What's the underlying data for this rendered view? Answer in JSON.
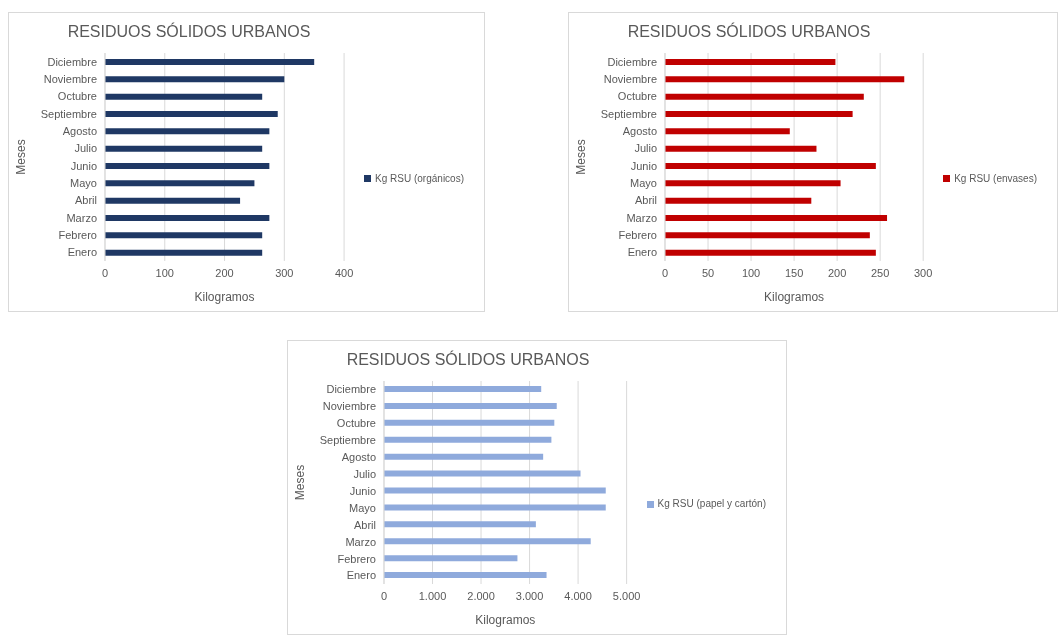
{
  "chart_data": [
    {
      "type": "bar",
      "orientation": "horizontal",
      "title": "RESIDUOS SÓLIDOS URBANOS",
      "xlabel": "Kilogramos",
      "ylabel": "Meses",
      "categories": [
        "Diciembre",
        "Noviembre",
        "Octubre",
        "Septiembre",
        "Agosto",
        "Julio",
        "Junio",
        "Mayo",
        "Abril",
        "Marzo",
        "Febrero",
        "Enero"
      ],
      "series": [
        {
          "name": "Kg RSU (orgánicos)",
          "color": "#1f3864",
          "values": [
            350,
            300,
            263,
            289,
            275,
            263,
            275,
            250,
            226,
            275,
            263,
            263
          ]
        }
      ],
      "xlim": [
        0,
        400
      ],
      "xticks": [
        0,
        100,
        200,
        300,
        400
      ],
      "grid": "x",
      "legend": "right"
    },
    {
      "type": "bar",
      "orientation": "horizontal",
      "title": "RESIDUOS SÓLIDOS URBANOS",
      "xlabel": "Kilogramos",
      "ylabel": "Meses",
      "categories": [
        "Diciembre",
        "Noviembre",
        "Octubre",
        "Septiembre",
        "Agosto",
        "Julio",
        "Junio",
        "Mayo",
        "Abril",
        "Marzo",
        "Febrero",
        "Enero"
      ],
      "series": [
        {
          "name": "Kg RSU (envases)",
          "color": "#c00000",
          "values": [
            198,
            278,
            231,
            218,
            145,
            176,
            245,
            204,
            170,
            258,
            238,
            245
          ]
        }
      ],
      "xlim": [
        0,
        300
      ],
      "xticks": [
        0,
        50,
        100,
        150,
        200,
        250,
        300
      ],
      "grid": "x",
      "legend": "right"
    },
    {
      "type": "bar",
      "orientation": "horizontal",
      "title": "RESIDUOS SÓLIDOS URBANOS",
      "xlabel": "Kilogramos",
      "ylabel": "Meses",
      "categories": [
        "Diciembre",
        "Noviembre",
        "Octubre",
        "Septiembre",
        "Agosto",
        "Julio",
        "Junio",
        "Mayo",
        "Abril",
        "Marzo",
        "Febrero",
        "Enero"
      ],
      "series": [
        {
          "name": "Kg RSU (papel y cartón)",
          "color": "#8faadc",
          "values": [
            3240,
            3560,
            3510,
            3450,
            3280,
            4050,
            4570,
            4570,
            3130,
            4260,
            2750,
            3350
          ]
        }
      ],
      "xlim": [
        0,
        5000
      ],
      "xticks": [
        0,
        {
          "value": 1000,
          "label": "1.000"
        },
        {
          "value": 2000,
          "label": "2.000"
        },
        {
          "value": 3000,
          "label": "3.000"
        },
        {
          "value": 4000,
          "label": "4.000"
        },
        {
          "value": 5000,
          "label": "5.000"
        }
      ],
      "grid": "x",
      "legend": "right"
    }
  ]
}
